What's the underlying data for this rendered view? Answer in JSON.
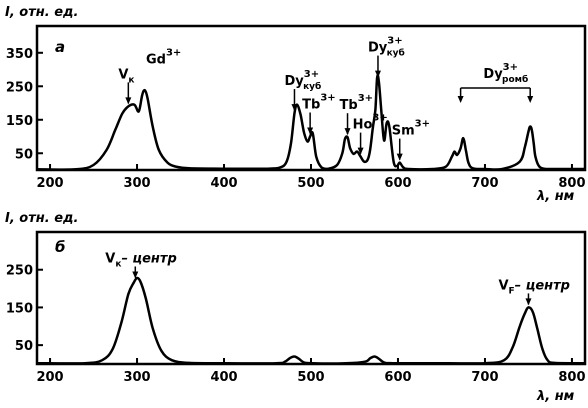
{
  "chart_data": [
    {
      "type": "line",
      "panel_label": "а",
      "ylabel": "I, отн. ед.",
      "xlabel": "λ, нм",
      "xlim": [
        185,
        815
      ],
      "ylim": [
        0,
        430
      ],
      "xticks": [
        "200",
        "300",
        "400",
        "500",
        "600",
        "700",
        "800"
      ],
      "yticks": [
        "50",
        "150",
        "250",
        "350"
      ],
      "grid": false,
      "x": [
        185,
        230,
        250,
        265,
        275,
        283,
        290,
        297,
        302,
        306,
        309,
        312,
        318,
        325,
        335,
        345,
        360,
        400,
        450,
        465,
        472,
        477,
        481,
        484,
        488,
        492,
        496,
        499,
        502,
        506,
        512,
        520,
        530,
        536,
        539,
        542,
        545,
        549,
        553,
        557,
        561,
        565,
        568,
        571,
        574,
        576,
        578,
        581,
        584,
        587,
        590,
        595,
        599,
        602,
        606,
        612,
        640,
        655,
        662,
        665,
        668,
        672,
        675,
        678,
        681,
        686,
        700,
        720,
        740,
        746,
        750,
        752,
        754,
        756,
        758,
        762,
        768,
        780,
        815
      ],
      "y": [
        2,
        2,
        15,
        60,
        120,
        168,
        190,
        195,
        175,
        225,
        238,
        215,
        130,
        60,
        22,
        10,
        5,
        4,
        4,
        8,
        25,
        80,
        170,
        195,
        165,
        112,
        85,
        100,
        110,
        40,
        8,
        4,
        15,
        50,
        92,
        98,
        65,
        48,
        55,
        40,
        25,
        30,
        60,
        125,
        180,
        275,
        265,
        170,
        88,
        140,
        130,
        25,
        12,
        22,
        8,
        3,
        3,
        10,
        40,
        55,
        45,
        65,
        95,
        60,
        22,
        5,
        3,
        3,
        25,
        70,
        115,
        130,
        118,
        80,
        40,
        12,
        4,
        3,
        3
      ],
      "annotations": [
        {
          "label": "V",
          "sub": "к",
          "at": 290
        },
        {
          "label": "Gd",
          "sup": "3+",
          "at": 308
        },
        {
          "label": "Dy",
          "sup": "3+",
          "sub": "куб",
          "at": 481
        },
        {
          "label": "Tb",
          "sup": "3+",
          "at": 499
        },
        {
          "label": "Tb",
          "sup": "3+",
          "at": 542
        },
        {
          "label": "Ho",
          "sup": "3+",
          "at": 557
        },
        {
          "label": "Dy",
          "sup": "3+",
          "sub": "куб",
          "at": 577
        },
        {
          "label": "Sm",
          "sup": "3+",
          "at": 602
        },
        {
          "label": "Dy",
          "sup": "3+",
          "sub": "ромб",
          "range": [
            672,
            752
          ]
        }
      ]
    },
    {
      "type": "line",
      "panel_label": "б",
      "ylabel": "I, отн. ед.",
      "xlabel": "λ, нм",
      "xlim": [
        185,
        815
      ],
      "ylim": [
        0,
        350
      ],
      "xticks": [
        "200",
        "300",
        "400",
        "500",
        "600",
        "700",
        "800"
      ],
      "yticks": [
        "50",
        "150",
        "250"
      ],
      "grid": false,
      "x": [
        185,
        240,
        260,
        272,
        282,
        290,
        296,
        300,
        304,
        310,
        318,
        328,
        340,
        360,
        400,
        460,
        470,
        476,
        481,
        486,
        492,
        502,
        540,
        562,
        568,
        573,
        578,
        584,
        594,
        640,
        700,
        722,
        732,
        740,
        746,
        750,
        755,
        760,
        766,
        772,
        780,
        815
      ],
      "y": [
        2,
        2,
        10,
        40,
        110,
        185,
        215,
        228,
        218,
        175,
        95,
        35,
        10,
        3,
        2,
        2,
        6,
        16,
        20,
        14,
        4,
        2,
        2,
        6,
        15,
        20,
        14,
        4,
        2,
        2,
        2,
        10,
        45,
        100,
        135,
        150,
        138,
        95,
        40,
        10,
        3,
        2
      ],
      "annotations": [
        {
          "label": "V",
          "sub": "к",
          "suffix": "– центр",
          "at": 298
        },
        {
          "label": "V",
          "sub": "F",
          "suffix": "– центр",
          "at": 750
        }
      ]
    }
  ]
}
